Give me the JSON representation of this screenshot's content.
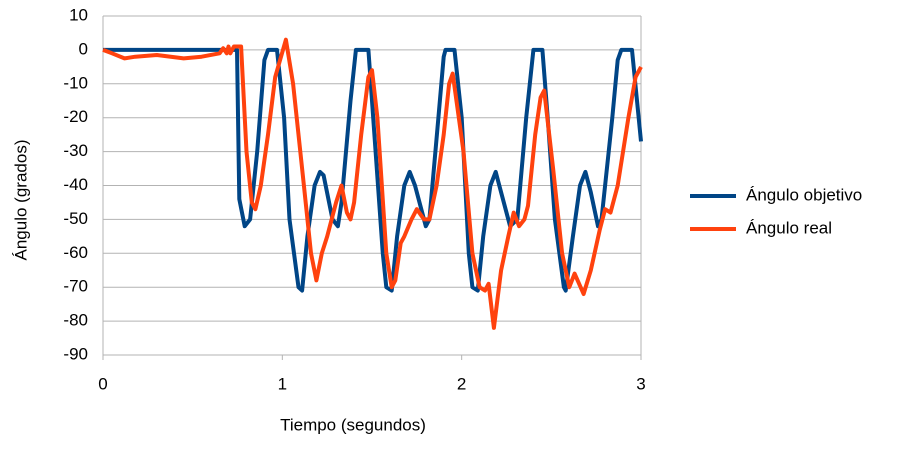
{
  "chart_data": {
    "type": "line",
    "ylabel": "Ángulo (grados)",
    "xlabel": "Tiempo (segundos)",
    "xlim": [
      0,
      3
    ],
    "xticks": [
      0,
      1,
      2,
      3
    ],
    "ylim": [
      -90,
      10
    ],
    "yticks": [
      10,
      0,
      -10,
      -20,
      -30,
      -40,
      -50,
      -60,
      -70,
      -80,
      -90
    ],
    "grid": true,
    "legend": "right",
    "series": [
      {
        "name": "Ángulo objetivo",
        "color": "#004586",
        "x": [
          0,
          0.747,
          0.76,
          0.79,
          0.82,
          0.86,
          0.9,
          0.92,
          0.97,
          1.01,
          1.04,
          1.09,
          1.11,
          1.14,
          1.18,
          1.21,
          1.23,
          1.28,
          1.31,
          1.33,
          1.38,
          1.41,
          1.48,
          1.52,
          1.56,
          1.58,
          1.61,
          1.64,
          1.68,
          1.71,
          1.74,
          1.8,
          1.82,
          1.87,
          1.9,
          1.91,
          1.96,
          2.0,
          2.04,
          2.06,
          2.09,
          2.12,
          2.16,
          2.19,
          2.21,
          2.27,
          2.31,
          2.36,
          2.4,
          2.45,
          2.48,
          2.52,
          2.57,
          2.58,
          2.62,
          2.66,
          2.69,
          2.72,
          2.76,
          2.78,
          2.84,
          2.87,
          2.89,
          2.95,
          3.0
        ],
        "values": [
          0,
          0,
          -44,
          -52,
          -50,
          -30,
          -3,
          0,
          0,
          -20,
          -50,
          -70,
          -71,
          -55,
          -40,
          -36,
          -37,
          -50,
          -52,
          -45,
          -15,
          0,
          0,
          -30,
          -60,
          -70,
          -71,
          -55,
          -40,
          -36,
          -40,
          -52,
          -50,
          -20,
          -2,
          0,
          0,
          -20,
          -60,
          -70,
          -71,
          -55,
          -40,
          -36,
          -40,
          -52,
          -50,
          -20,
          0,
          0,
          -20,
          -50,
          -70,
          -71,
          -55,
          -40,
          -36,
          -42,
          -52,
          -50,
          -20,
          -3,
          0,
          0,
          -27
        ]
      },
      {
        "name": "Ángulo real",
        "color": "#ff420e",
        "x": [
          0,
          0.05,
          0.12,
          0.18,
          0.3,
          0.45,
          0.55,
          0.65,
          0.67,
          0.69,
          0.7,
          0.71,
          0.73,
          0.77,
          0.8,
          0.83,
          0.85,
          0.88,
          0.92,
          0.96,
          1.02,
          1.06,
          1.12,
          1.16,
          1.19,
          1.22,
          1.25,
          1.3,
          1.33,
          1.36,
          1.38,
          1.4,
          1.44,
          1.48,
          1.5,
          1.53,
          1.58,
          1.61,
          1.63,
          1.66,
          1.68,
          1.72,
          1.75,
          1.79,
          1.82,
          1.86,
          1.9,
          1.93,
          1.95,
          2.01,
          2.06,
          2.1,
          2.13,
          2.15,
          2.18,
          2.22,
          2.26,
          2.29,
          2.32,
          2.35,
          2.37,
          2.41,
          2.44,
          2.46,
          2.51,
          2.56,
          2.6,
          2.63,
          2.68,
          2.72,
          2.77,
          2.8,
          2.83,
          2.87,
          2.93,
          2.97,
          3.0
        ],
        "values": [
          0,
          -1,
          -2.5,
          -2,
          -1.5,
          -2.5,
          -2,
          -1,
          0.5,
          -1,
          1,
          -1,
          1,
          1,
          -30,
          -45,
          -47,
          -40,
          -25,
          -8,
          3,
          -10,
          -40,
          -60,
          -68,
          -60,
          -55,
          -45,
          -40,
          -48,
          -50,
          -45,
          -25,
          -8,
          -6,
          -20,
          -60,
          -70,
          -68,
          -57,
          -55,
          -50,
          -47,
          -50,
          -50,
          -40,
          -25,
          -10,
          -7,
          -30,
          -60,
          -70,
          -71,
          -69,
          -82,
          -65,
          -55,
          -48,
          -52,
          -50,
          -46,
          -25,
          -14,
          -12,
          -35,
          -60,
          -70,
          -66,
          -72,
          -65,
          -53,
          -47,
          -48,
          -40,
          -20,
          -8,
          -5
        ]
      }
    ]
  }
}
